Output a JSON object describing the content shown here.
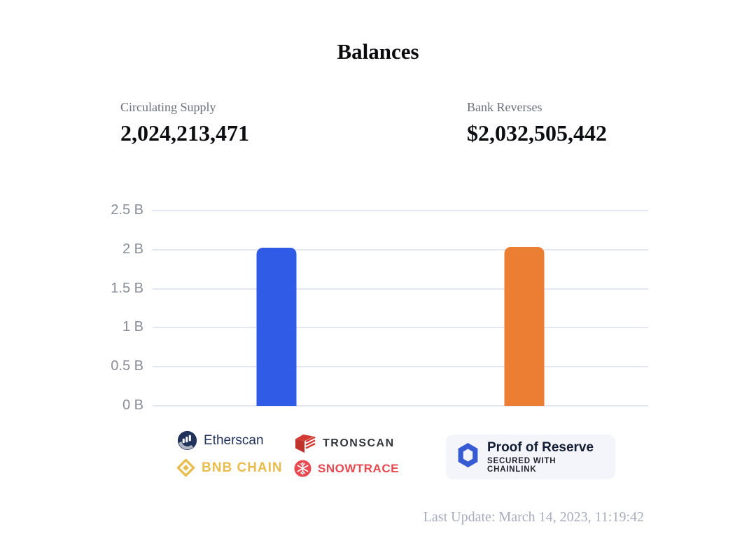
{
  "title": "Balances",
  "stats": {
    "supply_label": "Circulating Supply",
    "supply_value": "2,024,213,471",
    "reserves_label": "Bank Reverses",
    "reserves_value": "$2,032,505,442"
  },
  "chart_data": {
    "type": "bar",
    "title": "Balances",
    "categories": [
      "Circulating Supply",
      "Bank Reverses"
    ],
    "values": [
      2024213471,
      2032505442
    ],
    "bar_colors": [
      "#2f5be7",
      "#ec7e33"
    ],
    "yticks": [
      "2.5 B",
      "2 B",
      "1.5 B",
      "1 B",
      "0.5 B",
      "0 B"
    ],
    "ylim": [
      0,
      2500000000
    ],
    "xlabel": "",
    "ylabel": "",
    "grid": true,
    "legend": "none"
  },
  "logos": {
    "etherscan": "Etherscan",
    "tronscan": "TRONSCAN",
    "bnb_chain": "BNB CHAIN",
    "snowtrace": "SNOWTRACE"
  },
  "badge": {
    "title": "Proof of Reserve",
    "subtitle": "SECURED WITH CHAINLINK"
  },
  "footer": {
    "last_update": "Last Update: March 14, 2023, 11:19:42"
  },
  "colors": {
    "bar_supply_blue": "#2f5be7",
    "bar_reserves_orange": "#ec7e33",
    "gridline": "#e4e7f2",
    "axis_label": "#8b8e99",
    "etherscan_navy": "#21325b",
    "tronscan_red": "#d23b33",
    "bnb_gold": "#e9bc4e",
    "snowtrace_red": "#e8484f",
    "chainlink_blue": "#375bd2",
    "badge_background": "#f4f5fa",
    "muted_text": "#a9acbf"
  }
}
